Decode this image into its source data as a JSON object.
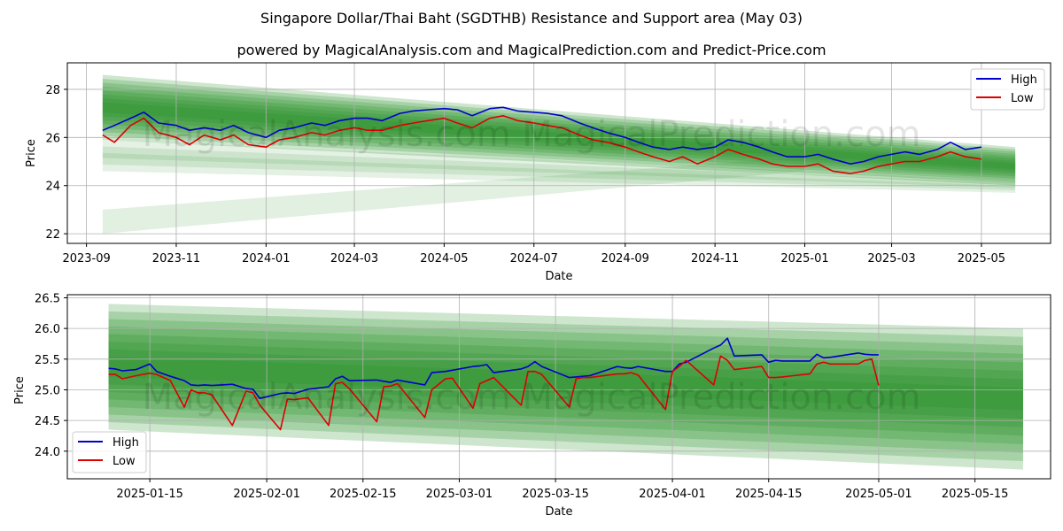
{
  "title": "Singapore Dollar/Thai Baht (SGDTHB) Resistance and Support area (May 03)",
  "subtitle": "powered by MagicalAnalysis.com and MagicalPrediction.com and Predict-Price.com",
  "watermark": "MagicalAnalysis.com   MagicalPrediction.com",
  "colors": {
    "high": "#0000cc",
    "low": "#dd0000",
    "band": "#228b22",
    "grid": "#b0b0b0"
  },
  "chart_data": [
    {
      "type": "line",
      "xlabel": "Date",
      "ylabel": "Price",
      "x_ticks": [
        "2023-09",
        "2023-11",
        "2024-01",
        "2024-03",
        "2024-05",
        "2024-07",
        "2024-09",
        "2024-11",
        "2025-01",
        "2025-03",
        "2025-05"
      ],
      "y_ticks": [
        22,
        24,
        26,
        28
      ],
      "xlim": [
        "2023-08-19",
        "2025-06-17"
      ],
      "ylim": [
        21.6,
        29.1
      ],
      "grid": true,
      "legend": "top-right",
      "bands": [
        {
          "type": "resistance",
          "from": "2023-09-12",
          "to": "2025-05-24",
          "start": [
            25.9,
            28.6
          ],
          "end": [
            24.0,
            25.6
          ]
        },
        {
          "type": "support-outer",
          "from": "2023-09-12",
          "to": "2025-05-24",
          "start": [
            24.6,
            25.9
          ],
          "end": [
            23.7,
            24.2
          ]
        },
        {
          "type": "support-faint",
          "from": "2023-09-12",
          "to": "2025-01-01",
          "start": [
            22.0,
            23.0
          ],
          "end": [
            24.6,
            25.2
          ]
        }
      ],
      "series": [
        {
          "name": "High",
          "x": [
            "2023-09-12",
            "2023-09-20",
            "2023-10-01",
            "2023-10-10",
            "2023-10-20",
            "2023-11-01",
            "2023-11-10",
            "2023-11-20",
            "2023-12-01",
            "2023-12-10",
            "2023-12-20",
            "2024-01-01",
            "2024-01-10",
            "2024-01-20",
            "2024-02-01",
            "2024-02-10",
            "2024-02-20",
            "2024-03-01",
            "2024-03-10",
            "2024-03-20",
            "2024-04-01",
            "2024-04-10",
            "2024-04-20",
            "2024-05-01",
            "2024-05-10",
            "2024-05-20",
            "2024-06-01",
            "2024-06-10",
            "2024-06-20",
            "2024-07-01",
            "2024-07-10",
            "2024-07-20",
            "2024-08-01",
            "2024-08-10",
            "2024-08-20",
            "2024-09-01",
            "2024-09-10",
            "2024-09-20",
            "2024-10-01",
            "2024-10-10",
            "2024-10-20",
            "2024-11-01",
            "2024-11-10",
            "2024-11-20",
            "2024-12-01",
            "2024-12-10",
            "2024-12-20",
            "2025-01-01",
            "2025-01-10",
            "2025-01-20",
            "2025-02-01",
            "2025-02-10",
            "2025-02-20",
            "2025-03-01",
            "2025-03-10",
            "2025-03-20",
            "2025-04-01",
            "2025-04-10",
            "2025-04-20",
            "2025-05-01"
          ],
          "values": [
            26.3,
            26.5,
            26.8,
            27.05,
            26.6,
            26.5,
            26.3,
            26.4,
            26.3,
            26.5,
            26.2,
            26.0,
            26.3,
            26.4,
            26.6,
            26.5,
            26.7,
            26.8,
            26.8,
            26.7,
            27.0,
            27.1,
            27.15,
            27.2,
            27.15,
            26.9,
            27.2,
            27.25,
            27.1,
            27.05,
            27.0,
            26.9,
            26.6,
            26.4,
            26.2,
            26.0,
            25.8,
            25.6,
            25.5,
            25.6,
            25.5,
            25.6,
            25.9,
            25.8,
            25.6,
            25.4,
            25.2,
            25.2,
            25.3,
            25.1,
            24.9,
            25.0,
            25.2,
            25.3,
            25.4,
            25.3,
            25.5,
            25.8,
            25.5,
            25.6
          ]
        },
        {
          "name": "Low",
          "x": [
            "2023-09-12",
            "2023-09-20",
            "2023-10-01",
            "2023-10-10",
            "2023-10-20",
            "2023-11-01",
            "2023-11-10",
            "2023-11-20",
            "2023-12-01",
            "2023-12-10",
            "2023-12-20",
            "2024-01-01",
            "2024-01-10",
            "2024-01-20",
            "2024-02-01",
            "2024-02-10",
            "2024-02-20",
            "2024-03-01",
            "2024-03-10",
            "2024-03-20",
            "2024-04-01",
            "2024-04-10",
            "2024-04-20",
            "2024-05-01",
            "2024-05-10",
            "2024-05-20",
            "2024-06-01",
            "2024-06-10",
            "2024-06-20",
            "2024-07-01",
            "2024-07-10",
            "2024-07-20",
            "2024-08-01",
            "2024-08-10",
            "2024-08-20",
            "2024-09-01",
            "2024-09-10",
            "2024-09-20",
            "2024-10-01",
            "2024-10-10",
            "2024-10-20",
            "2024-11-01",
            "2024-11-10",
            "2024-11-20",
            "2024-12-01",
            "2024-12-10",
            "2024-12-20",
            "2025-01-01",
            "2025-01-10",
            "2025-01-20",
            "2025-02-01",
            "2025-02-10",
            "2025-02-20",
            "2025-03-01",
            "2025-03-10",
            "2025-03-20",
            "2025-04-01",
            "2025-04-10",
            "2025-04-20",
            "2025-05-01"
          ],
          "values": [
            26.1,
            25.8,
            26.5,
            26.8,
            26.2,
            26.0,
            25.7,
            26.1,
            25.9,
            26.1,
            25.7,
            25.6,
            25.9,
            26.0,
            26.2,
            26.1,
            26.3,
            26.4,
            26.3,
            26.3,
            26.5,
            26.6,
            26.7,
            26.8,
            26.6,
            26.4,
            26.8,
            26.9,
            26.7,
            26.6,
            26.5,
            26.4,
            26.1,
            25.9,
            25.8,
            25.6,
            25.4,
            25.2,
            25.0,
            25.2,
            24.9,
            25.2,
            25.5,
            25.3,
            25.1,
            24.9,
            24.8,
            24.8,
            24.9,
            24.6,
            24.5,
            24.6,
            24.8,
            24.9,
            25.0,
            25.0,
            25.2,
            25.4,
            25.2,
            25.1
          ]
        }
      ]
    },
    {
      "type": "line",
      "xlabel": "Date",
      "ylabel": "Price",
      "x_ticks": [
        "2025-01-15",
        "2025-02-01",
        "2025-02-15",
        "2025-03-01",
        "2025-03-15",
        "2025-04-01",
        "2025-04-15",
        "2025-05-01",
        "2025-05-15"
      ],
      "y_ticks": [
        24.0,
        24.5,
        25.0,
        25.5,
        26.0,
        26.5
      ],
      "y_tick_labels": [
        "24.0",
        "24.5",
        "25.0",
        "25.5",
        "26.0",
        "26.5"
      ],
      "xlim": [
        "2025-01-03",
        "2025-05-26"
      ],
      "ylim": [
        23.55,
        26.55
      ],
      "grid": true,
      "legend": "bottom-left",
      "bands": [
        {
          "type": "resistance",
          "from": "2025-01-09",
          "to": "2025-05-22",
          "start": [
            24.35,
            26.4
          ],
          "end": [
            23.7,
            26.0
          ]
        }
      ],
      "series": [
        {
          "name": "High",
          "x": [
            "2025-01-09",
            "2025-01-10",
            "2025-01-11",
            "2025-01-13",
            "2025-01-15",
            "2025-01-16",
            "2025-01-18",
            "2025-01-20",
            "2025-01-21",
            "2025-01-22",
            "2025-01-23",
            "2025-01-24",
            "2025-01-27",
            "2025-01-29",
            "2025-01-30",
            "2025-01-31",
            "2025-02-03",
            "2025-02-04",
            "2025-02-05",
            "2025-02-07",
            "2025-02-10",
            "2025-02-11",
            "2025-02-12",
            "2025-02-13",
            "2025-02-17",
            "2025-02-18",
            "2025-02-19",
            "2025-02-20",
            "2025-02-24",
            "2025-02-25",
            "2025-02-27",
            "2025-02-28",
            "2025-03-03",
            "2025-03-04",
            "2025-03-05",
            "2025-03-06",
            "2025-03-10",
            "2025-03-11",
            "2025-03-12",
            "2025-03-13",
            "2025-03-17",
            "2025-03-18",
            "2025-03-19",
            "2025-03-20",
            "2025-03-24",
            "2025-03-25",
            "2025-03-26",
            "2025-03-27",
            "2025-03-31",
            "2025-04-01",
            "2025-04-02",
            "2025-04-03",
            "2025-04-07",
            "2025-04-08",
            "2025-04-09",
            "2025-04-10",
            "2025-04-14",
            "2025-04-15",
            "2025-04-16",
            "2025-04-17",
            "2025-04-21",
            "2025-04-22",
            "2025-04-23",
            "2025-04-24",
            "2025-04-28",
            "2025-04-29",
            "2025-04-30",
            "2025-05-01"
          ],
          "values": [
            25.35,
            25.34,
            25.31,
            25.33,
            25.42,
            25.3,
            25.22,
            25.15,
            25.08,
            25.07,
            25.08,
            25.07,
            25.09,
            25.02,
            25.01,
            24.86,
            24.94,
            24.95,
            24.94,
            25.01,
            25.05,
            25.18,
            25.22,
            25.15,
            25.16,
            25.14,
            25.12,
            25.16,
            25.08,
            25.28,
            25.3,
            25.32,
            25.38,
            25.39,
            25.41,
            25.28,
            25.34,
            25.38,
            25.46,
            25.38,
            25.2,
            25.21,
            25.22,
            25.23,
            25.38,
            25.36,
            25.35,
            25.38,
            25.3,
            25.3,
            25.42,
            25.45,
            25.68,
            25.73,
            25.84,
            25.55,
            25.57,
            25.45,
            25.48,
            25.47,
            25.47,
            25.58,
            25.52,
            25.53,
            25.6,
            25.58,
            25.57,
            25.57
          ]
        },
        {
          "name": "Low",
          "x": [
            "2025-01-09",
            "2025-01-10",
            "2025-01-11",
            "2025-01-13",
            "2025-01-15",
            "2025-01-16",
            "2025-01-18",
            "2025-01-20",
            "2025-01-21",
            "2025-01-22",
            "2025-01-23",
            "2025-01-24",
            "2025-01-27",
            "2025-01-29",
            "2025-01-30",
            "2025-01-31",
            "2025-02-03",
            "2025-02-04",
            "2025-02-05",
            "2025-02-07",
            "2025-02-10",
            "2025-02-11",
            "2025-02-12",
            "2025-02-13",
            "2025-02-17",
            "2025-02-18",
            "2025-02-19",
            "2025-02-20",
            "2025-02-24",
            "2025-02-25",
            "2025-02-27",
            "2025-02-28",
            "2025-03-03",
            "2025-03-04",
            "2025-03-05",
            "2025-03-06",
            "2025-03-10",
            "2025-03-11",
            "2025-03-12",
            "2025-03-13",
            "2025-03-17",
            "2025-03-18",
            "2025-03-19",
            "2025-03-20",
            "2025-03-24",
            "2025-03-25",
            "2025-03-26",
            "2025-03-27",
            "2025-03-31",
            "2025-04-01",
            "2025-04-02",
            "2025-04-03",
            "2025-04-07",
            "2025-04-08",
            "2025-04-09",
            "2025-04-10",
            "2025-04-14",
            "2025-04-15",
            "2025-04-16",
            "2025-04-17",
            "2025-04-21",
            "2025-04-22",
            "2025-04-23",
            "2025-04-24",
            "2025-04-28",
            "2025-04-29",
            "2025-04-30",
            "2025-05-01"
          ],
          "values": [
            25.25,
            25.25,
            25.18,
            25.23,
            25.27,
            25.25,
            25.15,
            24.72,
            25.0,
            24.95,
            24.95,
            24.92,
            24.42,
            24.98,
            24.95,
            24.75,
            24.35,
            24.85,
            24.84,
            24.87,
            24.42,
            25.1,
            25.12,
            25.02,
            24.48,
            25.05,
            25.06,
            25.1,
            24.55,
            25.0,
            25.18,
            25.19,
            24.7,
            25.1,
            25.15,
            25.2,
            24.75,
            25.3,
            25.3,
            25.25,
            24.72,
            25.18,
            25.2,
            25.2,
            25.26,
            25.26,
            25.28,
            25.24,
            24.68,
            25.3,
            25.38,
            25.48,
            25.08,
            25.55,
            25.48,
            25.33,
            25.38,
            25.2,
            25.2,
            25.21,
            25.26,
            25.42,
            25.45,
            25.42,
            25.42,
            25.48,
            25.5,
            25.07
          ]
        }
      ]
    }
  ]
}
